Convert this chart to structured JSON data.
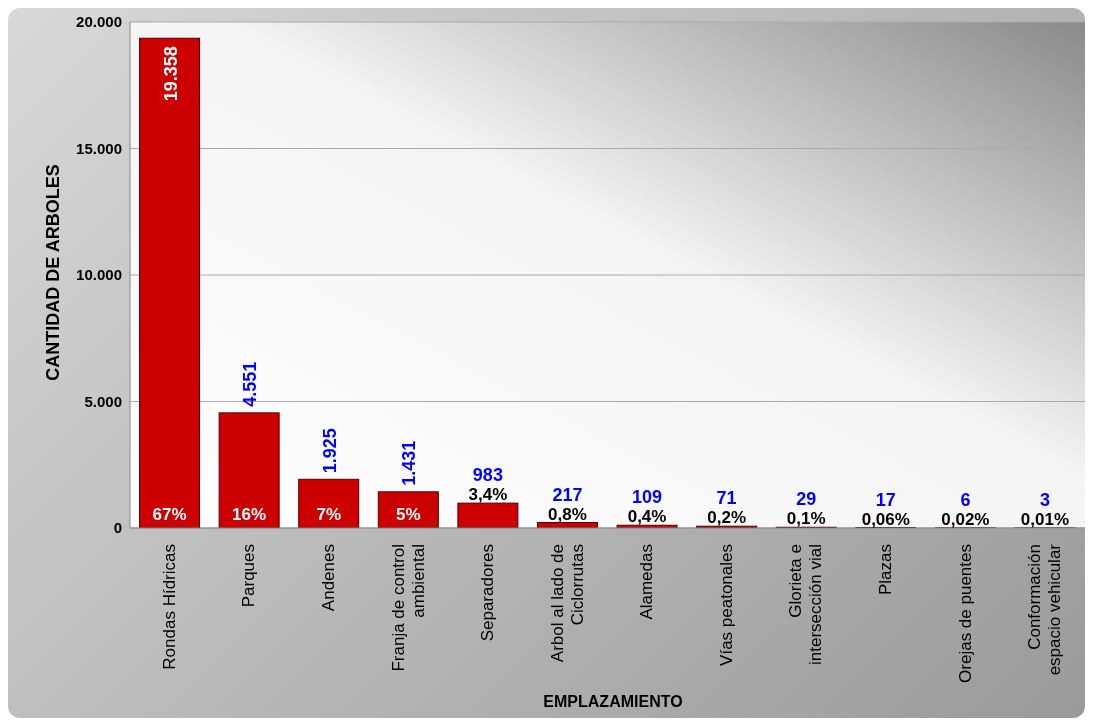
{
  "chart_data": {
    "type": "bar",
    "xlabel": "EMPLAZAMIENTO",
    "ylabel": "CANTIDAD DE ARBOLES",
    "categories": [
      "Rondas Hídricas",
      "Parques",
      "Andenes",
      "Franja de control ambiental",
      "Separadores",
      "Arbol al lado de Ciclorrutas",
      "Alamedas",
      "Vías peatonales",
      "Glorieta e intersección vial",
      "Plazas",
      "Orejas de puentes",
      "Conformación espacio vehicular"
    ],
    "values": [
      19358,
      4551,
      1925,
      1431,
      983,
      217,
      109,
      71,
      29,
      17,
      6,
      3
    ],
    "value_labels": [
      "19.358",
      "4.551",
      "1.925",
      "1.431",
      "983",
      "217",
      "109",
      "71",
      "29",
      "17",
      "6",
      "3"
    ],
    "color": "#cc0000",
    "ylim": [
      0,
      20000
    ],
    "yticks": [
      {
        "value": 0,
        "label": "0"
      },
      {
        "value": 5000,
        "label": "5.000"
      },
      {
        "value": 10000,
        "label": "10.000"
      },
      {
        "value": 15000,
        "label": "15.000"
      },
      {
        "value": 20000,
        "label": "20.000"
      }
    ],
    "grid": "y",
    "annotations": [
      {
        "text": "67%",
        "x": "Rondas Hídricas",
        "y": 0
      },
      {
        "text": "16%",
        "x": "Parques",
        "y": 0
      },
      {
        "text": "7%",
        "x": "Andenes",
        "y": 0
      },
      {
        "text": "5%",
        "x": "Franja de control ambiental",
        "y": 0
      },
      {
        "text": "3,4%",
        "x": "Separadores",
        "y": 983
      },
      {
        "text": "0,8%",
        "x": "Arbol al lado de Ciclorrutas",
        "y": 217
      },
      {
        "text": "0,4%",
        "x": "Alamedas",
        "y": 109
      },
      {
        "text": "0,2%",
        "x": "Vías peatonales",
        "y": 71
      },
      {
        "text": "0,1%",
        "x": "Glorieta e intersección vial",
        "y": 29
      },
      {
        "text": "0,06%",
        "x": "Plazas",
        "y": 17
      },
      {
        "text": "0,02%",
        "x": "Orejas de puentes",
        "y": 6
      },
      {
        "text": "0,01%",
        "x": "Conformación espacio vehicular",
        "y": 3
      }
    ]
  }
}
